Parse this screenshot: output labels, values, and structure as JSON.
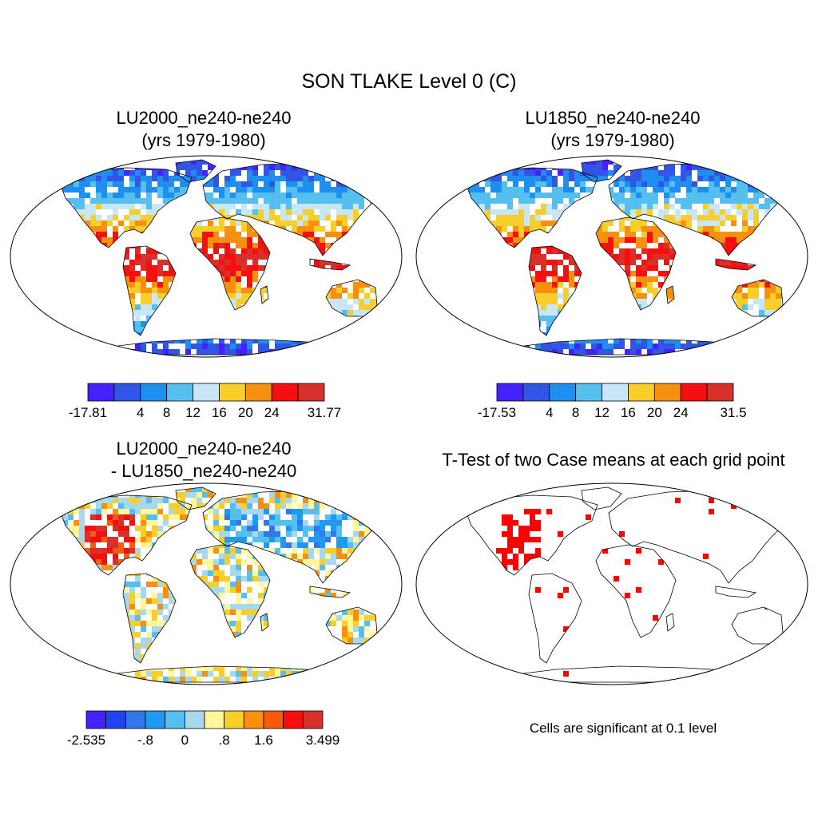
{
  "title": "SON TLAKE Level 0 (C)",
  "panels": [
    {
      "title_line1": "LU2000_ne240-ne240",
      "title_line2": "(yrs 1979-1980)"
    },
    {
      "title_line1": "LU1850_ne240-ne240",
      "title_line2": "(yrs 1979-1980)"
    },
    {
      "title_line1": "LU2000_ne240-ne240",
      "title_line2": "- LU1850_ne240-ne240"
    },
    {
      "title_line1": "T-Test of two Case means at each grid point",
      "title_line2": ""
    }
  ],
  "colorbars": [
    {
      "colors": [
        "#4422ff",
        "#3355e6",
        "#1e8fef",
        "#55c0f0",
        "#c8e6f5",
        "#f8cf2a",
        "#f7900e",
        "#f70f0f",
        "#d8302a"
      ],
      "labels": [
        "-17.81",
        "4",
        "8",
        "12",
        "16",
        "20",
        "24",
        "31.77"
      ]
    },
    {
      "colors": [
        "#4422ff",
        "#3355e6",
        "#1e8fef",
        "#55c0f0",
        "#c8e6f5",
        "#f8cf2a",
        "#f7900e",
        "#f70f0f",
        "#d8302a"
      ],
      "labels": [
        "-17.53",
        "4",
        "8",
        "12",
        "16",
        "20",
        "24",
        "31.5"
      ]
    },
    {
      "colors": [
        "#4422ff",
        "#2244ee",
        "#3377e8",
        "#1e9af2",
        "#55c0f0",
        "#a8d8ee",
        "#fff79a",
        "#f8cf2a",
        "#f7900e",
        "#f85a10",
        "#f70f0f",
        "#d8302a"
      ],
      "labels": [
        "-2.535",
        "-.8",
        "0",
        ".8",
        "1.6",
        "3.499"
      ]
    }
  ],
  "significance_note": "Cells are significant at 0.1 level",
  "significance_color": "#ff0000"
}
